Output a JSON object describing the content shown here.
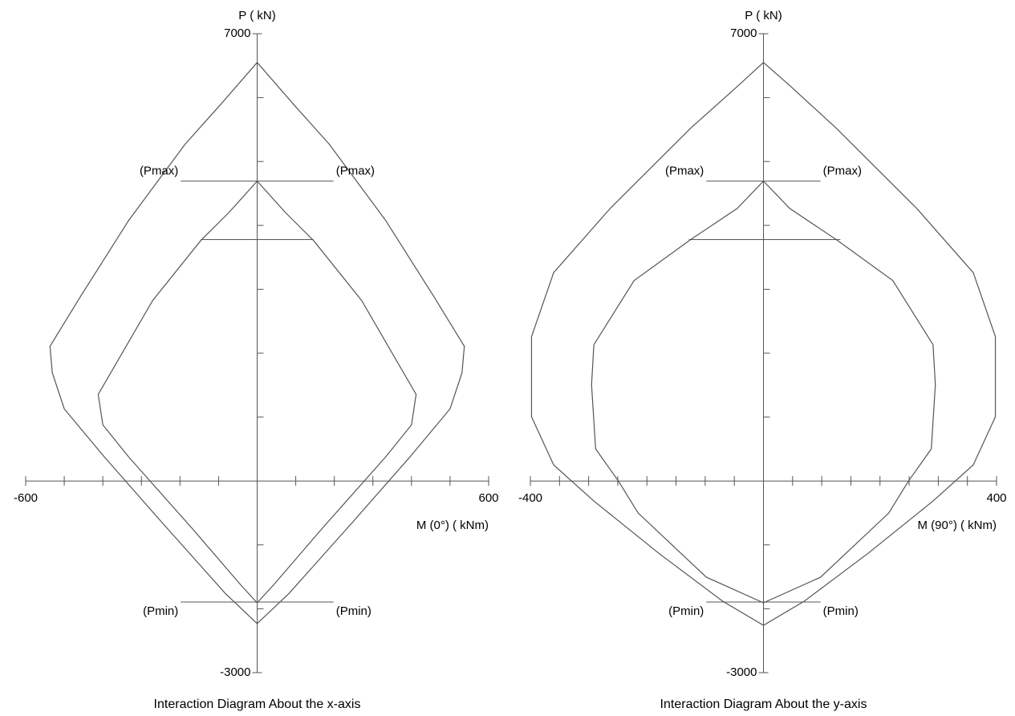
{
  "chart_data": [
    {
      "type": "line",
      "title": "Interaction Diagram About the x-axis",
      "x_label": "M (0°) ( kNm)",
      "y_label": "P ( kN)",
      "xlim": [
        -600,
        600
      ],
      "ylim": [
        -3000,
        7000
      ],
      "xticks": [
        -600,
        600
      ],
      "yticks": [
        7000,
        -3000
      ],
      "xminorticks": [
        -500,
        -400,
        -300,
        -200,
        -100,
        100,
        200,
        300,
        400,
        500
      ],
      "yminorticks": [
        6000,
        5000,
        4000,
        3000,
        2000,
        1000,
        -1000,
        -2000
      ],
      "color": "#555555",
      "series": [
        {
          "x": [
            0,
            94,
            187,
            333,
            458,
            537,
            531,
            500,
            396,
            250,
            83,
            0,
            -83,
            -250,
            -396,
            -500,
            -531,
            -537,
            -458,
            -333,
            -187,
            -94,
            0
          ],
          "y": [
            6550,
            5897,
            5270,
            4078,
            2886,
            2108,
            1694,
            1129,
            376,
            -627,
            -1757,
            -2233,
            -1757,
            -627,
            376,
            1129,
            1694,
            2108,
            2886,
            4078,
            5270,
            5897,
            6550
          ]
        },
        {
          "x": [
            0,
            73,
            146,
            271,
            412,
            400,
            333,
            167,
            42,
            0,
            -42,
            -167,
            -333,
            -400,
            -412,
            -271,
            -146,
            -73,
            0
          ],
          "y": [
            4693,
            4203,
            3764,
            2823,
            1355,
            878,
            376,
            -753,
            -1631,
            -1907,
            -1631,
            -753,
            376,
            878,
            1355,
            2823,
            3764,
            4203,
            4693
          ]
        }
      ],
      "reference_lines": [
        {
          "labels": [
            "(Pmax)",
            "(Pmax)"
          ],
          "x": [
            -198,
            198
          ],
          "y": [
            4693,
            4693
          ]
        },
        {
          "x": [
            -146,
            146
          ],
          "y": [
            3777,
            3777
          ]
        },
        {
          "labels": [
            "(Pmin)",
            "(Pmin)"
          ],
          "x": [
            -198,
            198
          ],
          "y": [
            -1895,
            -1895
          ]
        }
      ]
    },
    {
      "type": "line",
      "title": "Interaction Diagram About the y-axis",
      "x_label": "M (90°) ( kNm)",
      "y_label": "P ( kN)",
      "xlim": [
        -400,
        400
      ],
      "ylim": [
        -3000,
        7000
      ],
      "xticks": [
        -400,
        400
      ],
      "yticks": [
        7000,
        -3000
      ],
      "xminorticks": [
        -350,
        -300,
        -250,
        -200,
        -150,
        -100,
        -50,
        50,
        100,
        150,
        200,
        250,
        300,
        350
      ],
      "yminorticks": [
        6000,
        5000,
        4000,
        3000,
        2000,
        1000,
        -1000,
        -2000
      ],
      "color": "#555555",
      "series": [
        {
          "x": [
            0,
            47,
            125,
            263,
            360,
            398,
            398,
            360,
            291,
            180,
            70,
            0,
            -70,
            -180,
            -291,
            -360,
            -398,
            -398,
            -360,
            -263,
            -125,
            -45,
            0
          ],
          "y": [
            6550,
            6173,
            5521,
            4266,
            3262,
            2259,
            1004,
            251,
            -314,
            -1129,
            -1882,
            -2259,
            -1882,
            -1129,
            -314,
            251,
            1004,
            2259,
            3262,
            4266,
            5521,
            6173,
            6550
          ]
        },
        {
          "x": [
            0,
            45,
            125,
            222,
            291,
            295,
            288,
            249,
            215,
            98,
            0,
            -98,
            -215,
            -249,
            -288,
            -295,
            -291,
            -222,
            -125,
            -45,
            0
          ],
          "y": [
            4693,
            4266,
            3777,
            3137,
            2133,
            1506,
            502,
            0,
            -502,
            -1506,
            -1907,
            -1506,
            -502,
            0,
            502,
            1506,
            2133,
            3137,
            3777,
            4266,
            4693
          ]
        }
      ],
      "reference_lines": [
        {
          "labels": [
            "(Pmax)",
            "(Pmax)"
          ],
          "x": [
            -98,
            98
          ],
          "y": [
            4693,
            4693
          ]
        },
        {
          "x": [
            -128,
            132
          ],
          "y": [
            3777,
            3777
          ]
        },
        {
          "labels": [
            "(Pmin)",
            "(Pmin)"
          ],
          "x": [
            -98,
            98
          ],
          "y": [
            -1895,
            -1895
          ]
        }
      ]
    }
  ]
}
